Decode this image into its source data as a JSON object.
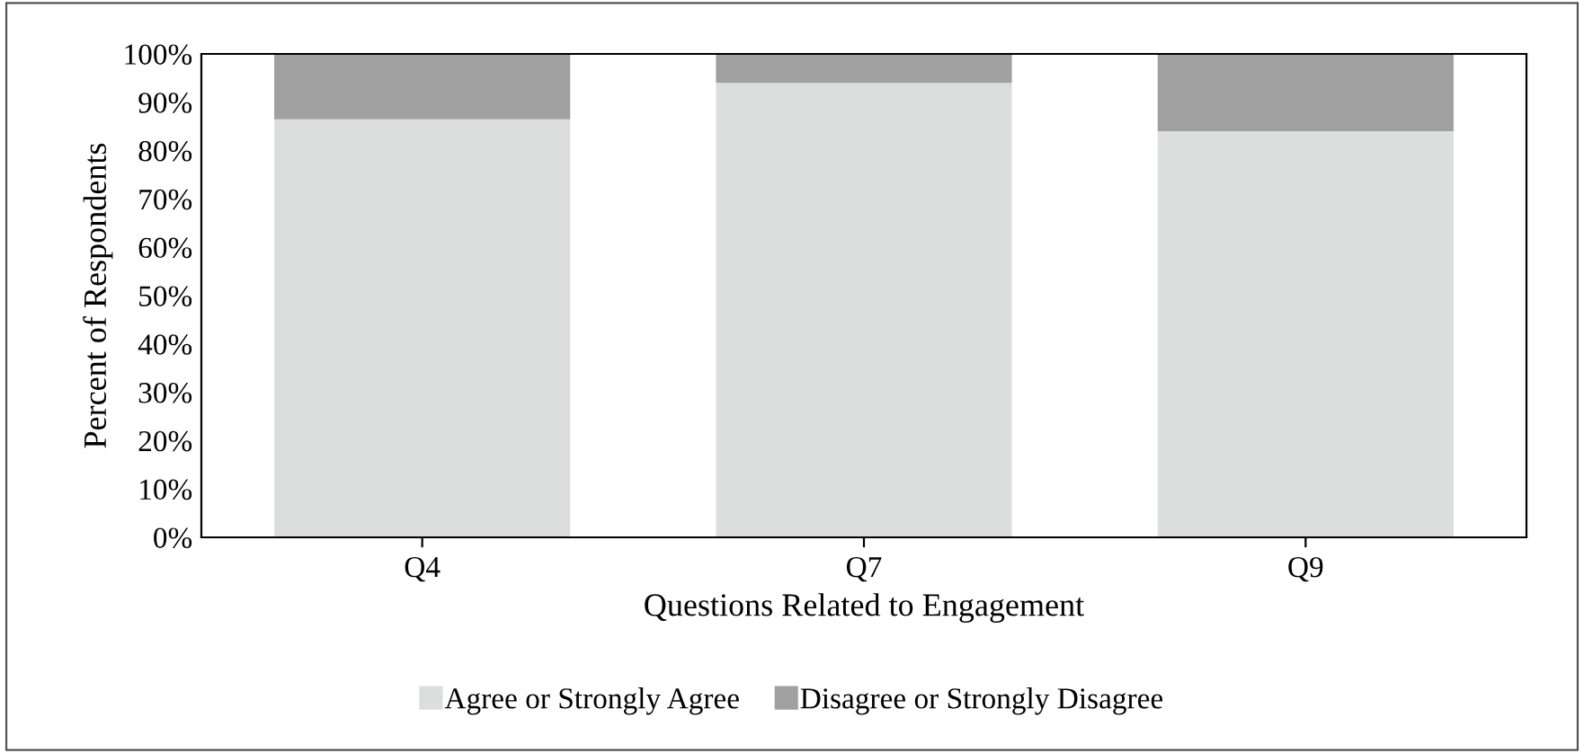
{
  "chart_data": {
    "type": "bar",
    "stacked": true,
    "xlabel": "Questions Related to Engagement",
    "ylabel": "Percent of Respondents",
    "categories": [
      "Q4",
      "Q7",
      "Q9"
    ],
    "series": [
      {
        "name": "Agree or Strongly Agree",
        "color": "#dcdddd",
        "values": [
          86.5,
          94,
          84
        ]
      },
      {
        "name": "Disagree or Strongly Disagree",
        "color": "#9fa09f",
        "values": [
          13.5,
          6,
          16
        ]
      }
    ],
    "ylim": [
      0,
      100
    ],
    "yticks": [
      {
        "value": 0,
        "label": "0%"
      },
      {
        "value": 10,
        "label": "10%"
      },
      {
        "value": 20,
        "label": "20%"
      },
      {
        "value": 30,
        "label": "30%"
      },
      {
        "value": 40,
        "label": "40%"
      },
      {
        "value": 50,
        "label": "50%"
      },
      {
        "value": 60,
        "label": "60%"
      },
      {
        "value": 70,
        "label": "70%"
      },
      {
        "value": 80,
        "label": "80%"
      },
      {
        "value": 90,
        "label": "90%"
      },
      {
        "value": 100,
        "label": "100%"
      }
    ],
    "grid": false,
    "legend": "bottom"
  }
}
